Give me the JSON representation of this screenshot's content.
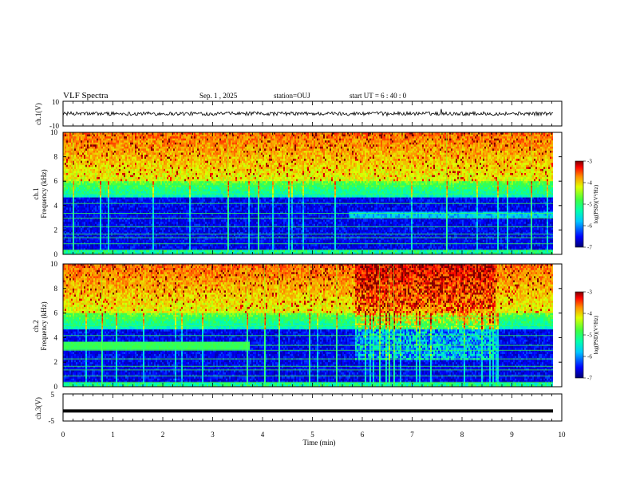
{
  "header": {
    "title": "VLF Spectra",
    "date": "Sep. 1 , 2025",
    "station": "station=OUJ",
    "start": "start UT = 6 : 40 : 0"
  },
  "chart_data": [
    {
      "type": "line",
      "panel": "ch1-waveform",
      "ylabel": "ch.1(V)",
      "ylim": [
        -10,
        10
      ],
      "y_ticklabels": [
        "10",
        "-10"
      ],
      "xlim": [
        0,
        10
      ],
      "series": [
        {
          "values_description": "",
          "mean": 0,
          "amplitude": 1.5
        }
      ]
    },
    {
      "type": "heatmap",
      "panel": "ch1-spectrogram",
      "ylabel": "ch.1 Frequency (kHz)",
      "ylabel_ch": "ch.1",
      "ylabel_f": "Frequency (kHz)",
      "ylim": [
        0,
        10
      ],
      "y_ticklabels": [
        "0",
        "2",
        "4",
        "6",
        "8",
        "10"
      ],
      "xlim": [
        0,
        10
      ],
      "colorbar": {
        "label": "log(PSD)(V²/Hz)",
        "range": [
          -7,
          -3
        ],
        "ticklabels": [
          "-3",
          "-4",
          "-5",
          "-6",
          "-7"
        ]
      }
    },
    {
      "type": "heatmap",
      "panel": "ch2-spectrogram",
      "ylabel": "ch.2 Frequency (kHz)",
      "ylabel_ch": "ch.2",
      "ylabel_f": "Frequency (kHz)",
      "ylim": [
        0,
        10
      ],
      "y_ticklabels": [
        "0",
        "2",
        "4",
        "6",
        "8",
        "10"
      ],
      "xlim": [
        0,
        10
      ],
      "colorbar": {
        "label": "log(PSD)(V²/Hz)",
        "range": [
          -7,
          -3
        ],
        "ticklabels": [
          "-3",
          "-4",
          "-5",
          "-6",
          "-7"
        ]
      }
    },
    {
      "type": "line",
      "panel": "ch3-level",
      "ylabel": "ch.3(V)",
      "ylim": [
        -5,
        5
      ],
      "y_ticklabels": [
        "5",
        "-5"
      ],
      "xlim": [
        0,
        10
      ],
      "series": [
        {
          "constant": -1.3
        }
      ]
    }
  ],
  "xaxis": {
    "label": "Time (min)",
    "ticklabels": [
      "0",
      "1",
      "2",
      "3",
      "4",
      "5",
      "6",
      "7",
      "8",
      "9",
      "10"
    ],
    "range": [
      0,
      10
    ]
  },
  "colors": {
    "axis": "#000000",
    "colormap": [
      "#000070",
      "#0000ff",
      "#00c8ff",
      "#00ffb0",
      "#40ff40",
      "#e0ff00",
      "#ff9000",
      "#ff0000",
      "#7a0000"
    ]
  }
}
